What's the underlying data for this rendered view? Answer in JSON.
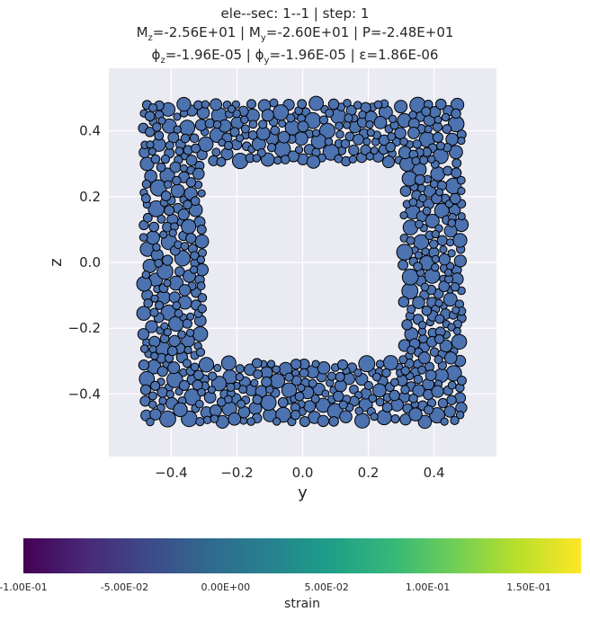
{
  "title": {
    "line1": "ele--sec: 1--1 | step: 1",
    "line2": {
      "mz_label": "M",
      "mz_sub": "z",
      "mz_val": "=-2.56E+01 | M",
      "my_sub": "y",
      "my_val": "=-2.60E+01 | P=-2.48E+01"
    },
    "line3": {
      "phiz": "ϕ",
      "phiz_sub": "z",
      "phiz_val": "=-1.96E-05 | ϕ",
      "phiy_sub": "y",
      "phiy_val": "=-1.96E-05 | ε=1.86E-06"
    }
  },
  "chart_data": {
    "type": "scatter",
    "xlabel": "y",
    "ylabel": "z",
    "xlim": [
      -0.59,
      0.59
    ],
    "ylim": [
      -0.59,
      0.59
    ],
    "xticks": [
      -0.4,
      -0.2,
      0.0,
      0.2,
      0.4
    ],
    "yticks": [
      -0.4,
      -0.2,
      0.0,
      0.2,
      0.4
    ],
    "xtick_labels": [
      "−0.4",
      "−0.2",
      "0.0",
      "0.2",
      "0.4"
    ],
    "ytick_labels": [
      "−0.4",
      "−0.2",
      "0.0",
      "0.2",
      "0.4"
    ],
    "grid": true,
    "section": {
      "outer_half_width": 0.5,
      "inner_half_width": 0.3
    },
    "point_color": "#4c72b0",
    "point_edge": "#000000",
    "background": "#eaeaf2"
  },
  "colorbar": {
    "label": "strain",
    "ticks": [
      "-1.00E-01",
      "-5.00E-02",
      "0.00E+00",
      "5.00E-02",
      "1.00E-01",
      "1.50E-01"
    ]
  }
}
